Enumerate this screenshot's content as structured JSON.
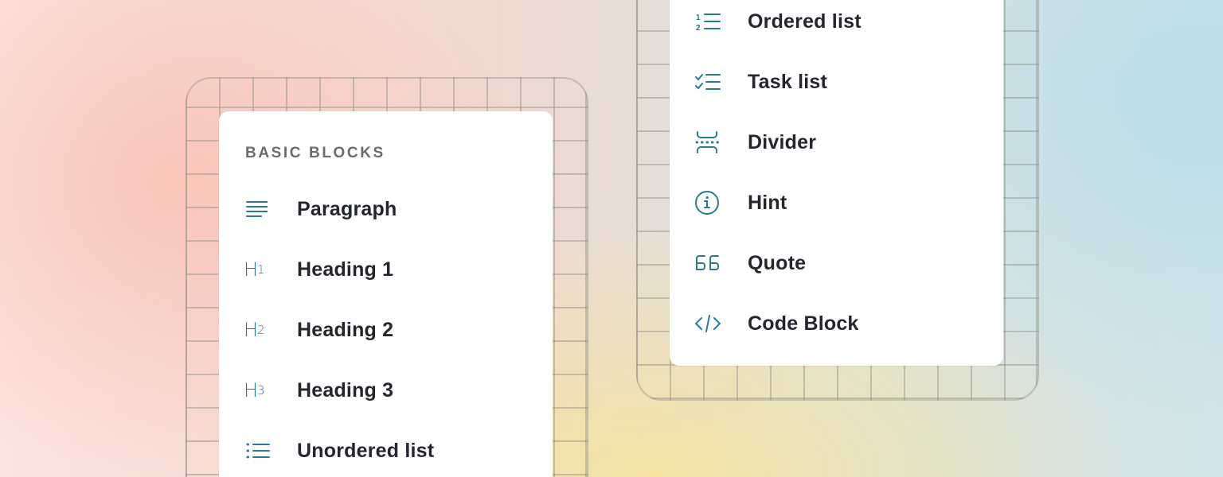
{
  "left_menu": {
    "section_title": "BASIC BLOCKS",
    "items": [
      {
        "label": "Paragraph",
        "icon": "paragraph-icon"
      },
      {
        "label": "Heading 1",
        "icon": "heading-1-icon"
      },
      {
        "label": "Heading 2",
        "icon": "heading-2-icon"
      },
      {
        "label": "Heading 3",
        "icon": "heading-3-icon"
      },
      {
        "label": "Unordered list",
        "icon": "unordered-list-icon"
      }
    ]
  },
  "right_menu": {
    "items": [
      {
        "label": "Ordered list",
        "icon": "ordered-list-icon"
      },
      {
        "label": "Task list",
        "icon": "task-list-icon"
      },
      {
        "label": "Divider",
        "icon": "divider-icon"
      },
      {
        "label": "Hint",
        "icon": "info-icon"
      },
      {
        "label": "Quote",
        "icon": "quote-icon"
      },
      {
        "label": "Code Block",
        "icon": "code-icon"
      }
    ]
  },
  "colors": {
    "icon": "#2b7a93",
    "text": "#23262d",
    "section_title": "#676b74"
  }
}
